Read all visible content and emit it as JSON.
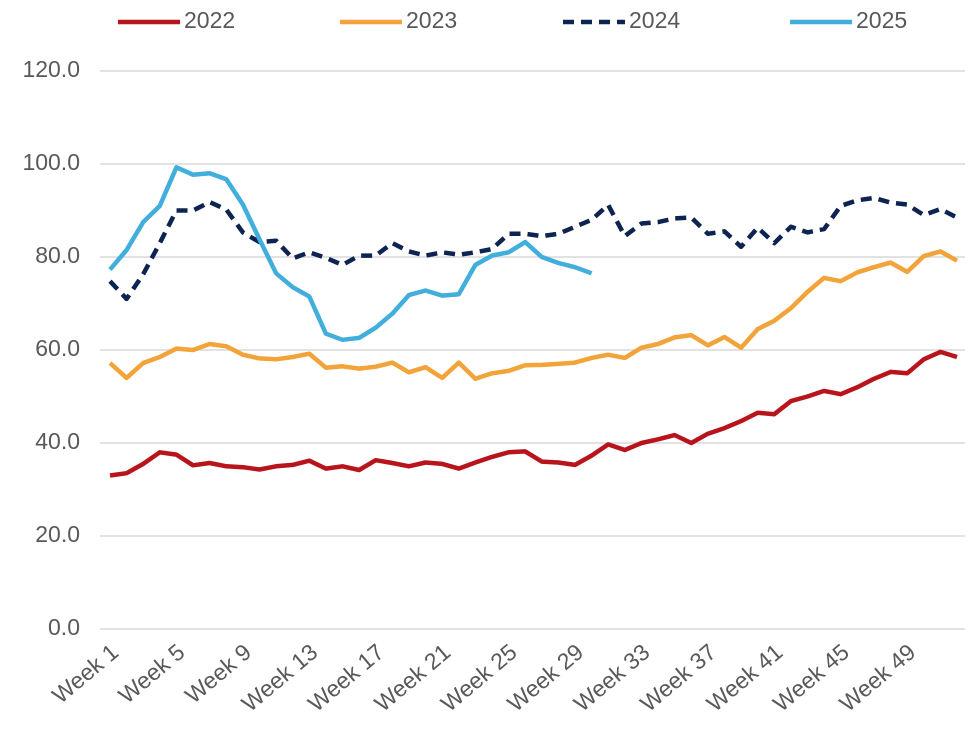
{
  "chart_data": {
    "type": "line",
    "categories": [
      "Week 1",
      null,
      null,
      null,
      "Week 5",
      null,
      null,
      null,
      "Week 9",
      null,
      null,
      null,
      "Week 13",
      null,
      null,
      null,
      "Week 17",
      null,
      null,
      null,
      "Week 21",
      null,
      null,
      null,
      "Week 25",
      null,
      null,
      null,
      "Week 29",
      null,
      null,
      null,
      "Week 33",
      null,
      null,
      null,
      "Week 37",
      null,
      null,
      null,
      "Week 41",
      null,
      null,
      null,
      "Week 45",
      null,
      null,
      null,
      "Week 49",
      null,
      null,
      null
    ],
    "series": [
      {
        "name": "2022",
        "color": "#b8141c",
        "line_style": "solid",
        "values": [
          33,
          33.5,
          35.5,
          38,
          37.5,
          35.2,
          35.7,
          35,
          34.8,
          34.3,
          35,
          35.3,
          36.2,
          34.5,
          35,
          34.2,
          36.3,
          35.7,
          35,
          35.8,
          35.5,
          34.5,
          35.8,
          37,
          38,
          38.2,
          36,
          35.8,
          35.3,
          37.3,
          39.7,
          38.5,
          40,
          40.8,
          41.7,
          40,
          42,
          43.2,
          44.7,
          46.5,
          46.2,
          49,
          50,
          51.2,
          50.5,
          52,
          53.8,
          55.3,
          55,
          58,
          59.6,
          58.5
        ]
      },
      {
        "name": "2023",
        "color": "#f2a33a",
        "line_style": "solid",
        "values": [
          57.2,
          54,
          57.2,
          58.5,
          60.3,
          60,
          61.3,
          60.8,
          59,
          58.2,
          58,
          58.5,
          59.2,
          56.2,
          56.5,
          56,
          56.4,
          57.3,
          55.2,
          56.3,
          54,
          57.3,
          53.8,
          55,
          55.5,
          56.7,
          56.8,
          57,
          57.3,
          58.3,
          59,
          58.3,
          60.5,
          61.3,
          62.7,
          63.2,
          61,
          62.8,
          60.5,
          64.5,
          66.3,
          69,
          72.5,
          75.5,
          74.8,
          76.7,
          77.8,
          78.8,
          76.8,
          80.2,
          81.2,
          79.2
        ]
      },
      {
        "name": "2024",
        "color": "#0d2352",
        "line_style": "dashed",
        "values": [
          74.8,
          71,
          76.3,
          83,
          90,
          90,
          91.8,
          90.2,
          85.3,
          83.2,
          83.5,
          79.7,
          81,
          79.8,
          78.3,
          80.3,
          80.3,
          83,
          81.2,
          80.3,
          81,
          80.5,
          81,
          81.7,
          85,
          85,
          84.5,
          85,
          86.5,
          88,
          91.2,
          84.5,
          87.2,
          87.5,
          88.3,
          88.5,
          85,
          85.5,
          82.2,
          86.3,
          83,
          86.5,
          85.3,
          86,
          91,
          92.2,
          92.7,
          91.7,
          91.3,
          89,
          90.3,
          88.5
        ]
      },
      {
        "name": "2025",
        "color": "#41aedb",
        "line_style": "solid",
        "values": [
          77.3,
          81.5,
          87.5,
          91,
          99.3,
          97.7,
          98,
          96.7,
          91.3,
          83.8,
          76.5,
          73.5,
          71.5,
          63.5,
          62.2,
          62.6,
          64.8,
          67.8,
          71.8,
          72.8,
          71.7,
          72,
          78.3,
          80.3,
          81,
          83.2,
          80,
          78.7,
          77.8,
          76.5,
          null,
          null,
          null,
          null,
          null,
          null,
          null,
          null,
          null,
          null,
          null,
          null,
          null,
          null,
          null,
          null,
          null,
          null,
          null,
          null,
          null,
          null
        ]
      }
    ],
    "ylim": [
      0,
      120
    ],
    "yticks": [
      {
        "value": 0,
        "label": "0.0"
      },
      {
        "value": 20,
        "label": "20.0"
      },
      {
        "value": 40,
        "label": "40.0"
      },
      {
        "value": 60,
        "label": "60.0"
      },
      {
        "value": 80,
        "label": "80.0"
      },
      {
        "value": 100,
        "label": "100.0"
      },
      {
        "value": 120,
        "label": "120.0"
      }
    ],
    "grid": true,
    "legend": "top"
  }
}
